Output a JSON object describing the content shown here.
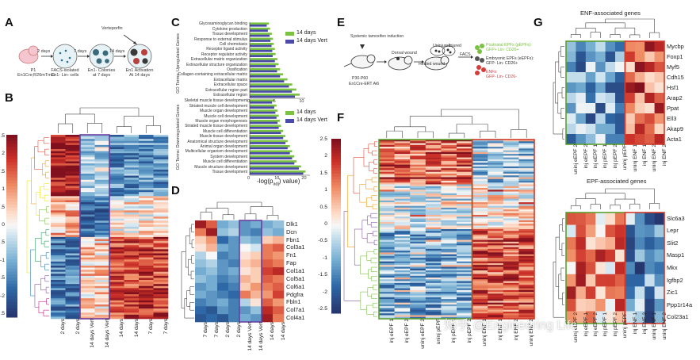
{
  "panels": {
    "A": "A",
    "B": "B",
    "C": "C",
    "D": "D",
    "E": "E",
    "F": "F",
    "G": "G"
  },
  "panelA": {
    "steps": [
      {
        "label": "P1\nEn1Cre;R26mTmG",
        "arrow": ""
      },
      {
        "label": "FACS-isolated\nEn1- Lin- cells",
        "arrow": "2 days"
      },
      {
        "label": "En1- Colonies\nat 7 days",
        "arrow": "7 days"
      },
      {
        "label": "En1 Activation\nAt 14 days",
        "arrow": "14 days"
      }
    ],
    "top_label": "Verteporfin"
  },
  "panelB": {
    "colorbar_ticks": [
      "2.5",
      "2",
      "1.5",
      "1",
      "0.5",
      "0",
      "-0.5",
      "-1",
      "-1.5",
      "-2",
      "-2.5"
    ],
    "columns": [
      "2 days",
      "2 days",
      "14 days Vert",
      "14 days Vert",
      "14 days",
      "14 days",
      "7 days",
      "7 days"
    ]
  },
  "panelC": {
    "up_axis_title": "GO Terms: Upregulated Genes",
    "down_axis_title": "GO Terms: Downregulated Genes",
    "x_label": "-log(p",
    "x_label_sub": "adj",
    "x_label_end": ") value)",
    "legend": [
      "14 days",
      "14 days Vert"
    ],
    "up_ticks": [
      "0",
      "5",
      "10"
    ],
    "down_ticks": [
      "0",
      "10",
      "20"
    ]
  },
  "chart_data": [
    {
      "type": "bar",
      "title": "GO Terms: Upregulated Genes",
      "xlabel": "-log(p adj) value",
      "categories": [
        "Glycosaminoglycan binding",
        "Cytokine production",
        "Tissue development",
        "Response to external stimulus",
        "Cell chemotaxis",
        "Receptor ligand activity",
        "Receptor regulator activity",
        "Extracellular matrix organization",
        "Extracellular structure organization",
        "Ossification",
        "Collagen-containing extracellular matrix",
        "Extracellular matrix",
        "Extracellular space",
        "Extracellular region part",
        "Extracellular region"
      ],
      "xlim": [
        0,
        15
      ],
      "series": [
        {
          "name": "14 days",
          "values": [
            5.2,
            5.5,
            6.0,
            6.3,
            6.5,
            6.8,
            7.0,
            7.5,
            7.8,
            8.2,
            9.0,
            10.2,
            11.5,
            12.6,
            13.5
          ]
        },
        {
          "name": "14 days Vert",
          "values": [
            4.6,
            4.9,
            5.4,
            5.6,
            5.9,
            6.1,
            6.2,
            6.8,
            7.0,
            7.4,
            8.2,
            9.3,
            10.6,
            11.4,
            12.2
          ]
        }
      ]
    },
    {
      "type": "bar",
      "title": "GO Terms: Downregulated Genes",
      "xlabel": "-log(p adj) value",
      "categories": [
        "Skeletal muscle tissue development",
        "Striated muscle cell development",
        "Muscle organ development",
        "Muscle cell development",
        "Muscle organ morphogenesis",
        "Striated muscle tissue development",
        "Muscle cell differentiation",
        "Muscle tissue development",
        "Anatomical structure development",
        "Animal organ development",
        "Multicellular organism development",
        "System development",
        "Muscle cell differentiation",
        "Muscle structure development",
        "Tissue development"
      ],
      "xlim": [
        0,
        27
      ],
      "series": [
        {
          "name": "14 days",
          "values": [
            11,
            12,
            12.5,
            13,
            13.5,
            14,
            15,
            16,
            17,
            18,
            19,
            20,
            21,
            23,
            25
          ]
        },
        {
          "name": "14 days Vert",
          "values": [
            10,
            11,
            11.5,
            12,
            12.5,
            13,
            14,
            15,
            16,
            17,
            18,
            19,
            20,
            22,
            24
          ]
        }
      ]
    }
  ],
  "panelD": {
    "genes": [
      "Dlk1",
      "Dcn",
      "Fbn1",
      "Col3a1",
      "Fn1",
      "Fap",
      "Col1a1",
      "Col5a1",
      "Col6a1",
      "Pdgfra",
      "Fbln1",
      "Col7a1",
      "Col4a1"
    ],
    "columns": [
      "7 days",
      "7 days",
      "2 days",
      "2 days",
      "14 days Vert",
      "14 days Vert",
      "14 days",
      "14 days"
    ]
  },
  "panelE": {
    "step1": "Systemic tamoxifen induction",
    "step2": "Dorsal wound",
    "step3": "Healed wound",
    "step4_a": "Uninjured",
    "step4_b": "Injured",
    "facs": "FACS",
    "mouse_label": "P30-P60",
    "mouse_sub": "En1Cre-ERT Ai6",
    "legend_1": "Postnatal EPFs (pEPFs):",
    "legend_1b": "GFP+ Lin- CD26+",
    "legend_2": "Embryonic EPFs (eEPFs):",
    "legend_2b": "GFP- Lin- CD26+",
    "legend_3": "ENFs:",
    "legend_3b": "GFP- Lin- CD26-"
  },
  "panelF": {
    "columns": [
      "inj eEPF 1",
      "inj eEPF 2",
      "uninj eEPF 2",
      "uninj pEPF",
      "inj pEPF 1",
      "inj pEPF 2",
      "uninj ENF 1",
      "inj ENF 1",
      "inj ENF 2",
      "uninj ENF 2"
    ]
  },
  "panelG": {
    "enf_title": "ENF-associated genes",
    "epf_title": "EPF-associated genes",
    "enf_genes": [
      "Mycbp",
      "Foxp1",
      "Myf5",
      "Cdh15",
      "Hsf1",
      "Arap2",
      "Ppat",
      "Ell3",
      "Akap9",
      "Acta1"
    ],
    "epf_genes": [
      "Slc6a3",
      "Lepr",
      "Slit2",
      "Masp1",
      "Mkx",
      "Igfbp2",
      "Zic1",
      "Ppp1r14a",
      "Col23a1"
    ],
    "columns_top": [
      "uninj eEPF 2",
      "inj eEPF 2",
      "inj eEPF 1",
      "inj pEPF 1",
      "inj pEPF 2",
      "uninj pEPF",
      "uninj ENF 1",
      "inj ENF 1",
      "uninj ENF 2",
      "inj ENF 2"
    ],
    "columns_bottom": [
      "uninj eEPF 2",
      "inj eEPF 1",
      "inj eEPF 2",
      "inj pEPF 1",
      "inj pEPF 2",
      "uninj pEPF",
      "inj ENF 1",
      "inj ENF 2",
      "uninj ENF 1",
      "uninj ENF 2"
    ]
  },
  "watermark": "知乎 @Engineering Life"
}
